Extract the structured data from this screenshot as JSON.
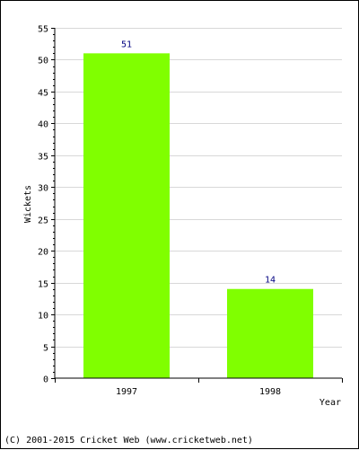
{
  "chart_data": {
    "type": "bar",
    "categories": [
      "1997",
      "1998"
    ],
    "values": [
      51,
      14
    ],
    "data_labels": [
      "51",
      "14"
    ],
    "xlabel": "Year",
    "ylabel": "Wickets",
    "ylim": [
      0,
      55
    ],
    "yticks": [
      0,
      5,
      10,
      15,
      20,
      25,
      30,
      35,
      40,
      45,
      50,
      55
    ],
    "grid": true,
    "bar_color": "#80ff00",
    "label_color": "#000080",
    "grid_color": "#d8d8d8"
  },
  "footer": "(C) 2001-2015 Cricket Web (www.cricketweb.net)"
}
